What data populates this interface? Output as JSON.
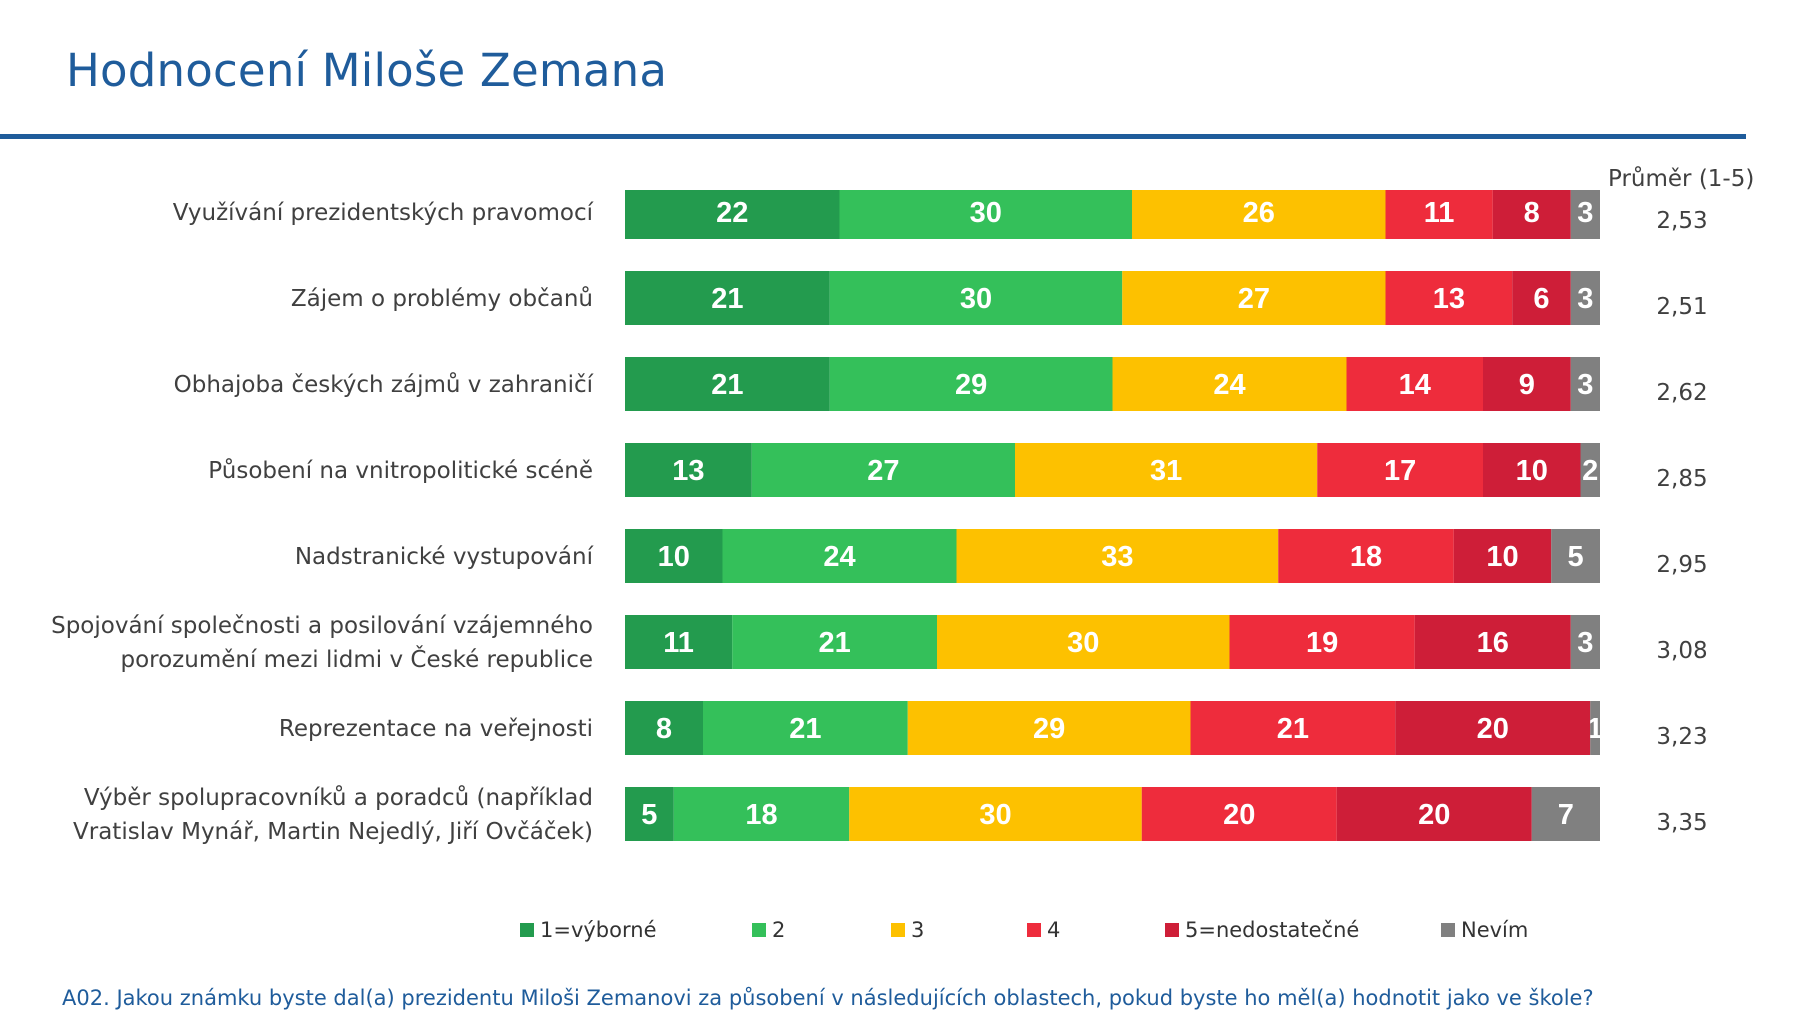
{
  "title": "Hodnocení Miloše Zemana",
  "avg_header": "Průměr (1-5)",
  "footnote": "A02. Jakou známku byste dal(a) prezidentu Miloši Zemanovi za působení v následujících oblastech, pokud byste ho měl(a) hodnotit jako ve škole?",
  "colors": {
    "title": "#1F5C9B",
    "s1": "#239B4E",
    "s2": "#34C05A",
    "s3": "#FDC100",
    "s4": "#EE2C3C",
    "s5": "#CE1E38",
    "s6": "#808080"
  },
  "chart_data": {
    "type": "bar",
    "orientation": "horizontal",
    "stacked": true,
    "categories": [
      [
        "Využívání prezidentských pravomocí"
      ],
      [
        "Zájem o problémy občanů"
      ],
      [
        "Obhajoba českých zájmů v zahraničí"
      ],
      [
        "Působení na vnitropolitické scéně"
      ],
      [
        "Nadstranické vystupování"
      ],
      [
        "Spojování společnosti a posilování vzájemného",
        "porozumění mezi lidmi v České republice"
      ],
      [
        "Reprezentace na veřejnosti"
      ],
      [
        "Výběr spolupracovníků a poradců (například",
        "Vratislav Mynář, Martin Nejedlý, Jiří Ovčáček)"
      ]
    ],
    "series": [
      {
        "name": "1=výborné",
        "color": "#239B4E",
        "values": [
          22,
          21,
          21,
          13,
          10,
          11,
          8,
          5
        ]
      },
      {
        "name": "2",
        "color": "#34C05A",
        "values": [
          30,
          30,
          29,
          27,
          24,
          21,
          21,
          18
        ]
      },
      {
        "name": "3",
        "color": "#FDC100",
        "values": [
          26,
          27,
          24,
          31,
          33,
          30,
          29,
          30
        ]
      },
      {
        "name": "4",
        "color": "#EE2C3C",
        "values": [
          11,
          13,
          14,
          17,
          18,
          19,
          21,
          20
        ]
      },
      {
        "name": "5=nedostatečné",
        "color": "#CE1E38",
        "values": [
          8,
          6,
          9,
          10,
          10,
          16,
          20,
          20
        ]
      },
      {
        "name": "Nevím",
        "color": "#808080",
        "values": [
          3,
          3,
          3,
          2,
          5,
          3,
          1,
          7
        ]
      }
    ],
    "averages": [
      "2,53",
      "2,51",
      "2,62",
      "2,85",
      "2,95",
      "3,08",
      "3,23",
      "3,35"
    ],
    "xlim": [
      0,
      100
    ],
    "legend_position": "bottom",
    "grid": false
  }
}
